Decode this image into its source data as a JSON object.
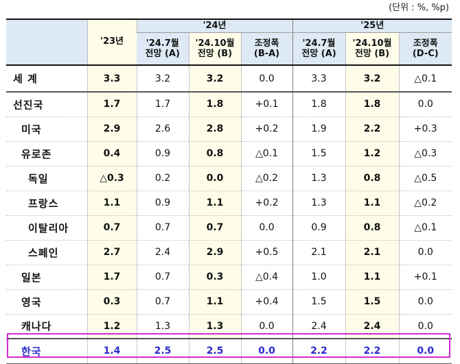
{
  "unit_note": "(단위 : %, %p)",
  "header": {
    "y23": "'23년",
    "y24": "'24년",
    "y25": "'25년",
    "sub": [
      {
        "l1": "'24.7월",
        "l2": "전망 (A)"
      },
      {
        "l1": "'24.10월",
        "l2": "전망 (B)"
      },
      {
        "l1": "조정폭",
        "l2": "(B-A)"
      },
      {
        "l1": "'24.7월",
        "l2": "전망 (A)"
      },
      {
        "l1": "'24.10월",
        "l2": "전망 (B)"
      },
      {
        "l1": "조정폭",
        "l2": "(D-C)"
      }
    ]
  },
  "rows": [
    {
      "name": "세  계",
      "v": [
        "3.3",
        "3.2",
        "3.2",
        "0.0",
        "3.3",
        "3.2",
        "△0.1"
      ]
    },
    {
      "name": "선진국",
      "v": [
        "1.7",
        "1.7",
        "1.8",
        "+0.1",
        "1.8",
        "1.8",
        "0.0"
      ]
    },
    {
      "name": "미국",
      "v": [
        "2.9",
        "2.6",
        "2.8",
        "+0.2",
        "1.9",
        "2.2",
        "+0.3"
      ]
    },
    {
      "name": "유로존",
      "v": [
        "0.4",
        "0.9",
        "0.8",
        "△0.1",
        "1.5",
        "1.2",
        "△0.3"
      ]
    },
    {
      "name": "독일",
      "v": [
        "△0.3",
        "0.2",
        "0.0",
        "△0.2",
        "1.3",
        "0.8",
        "△0.5"
      ]
    },
    {
      "name": "프랑스",
      "v": [
        "1.1",
        "0.9",
        "1.1",
        "+0.2",
        "1.3",
        "1.1",
        "△0.2"
      ]
    },
    {
      "name": "이탈리아",
      "v": [
        "0.7",
        "0.7",
        "0.7",
        "0.0",
        "0.9",
        "0.8",
        "△0.1"
      ]
    },
    {
      "name": "스페인",
      "v": [
        "2.7",
        "2.4",
        "2.9",
        "+0.5",
        "2.1",
        "2.1",
        "0.0"
      ]
    },
    {
      "name": "일본",
      "v": [
        "1.7",
        "0.7",
        "0.3",
        "△0.4",
        "1.0",
        "1.1",
        "+0.1"
      ]
    },
    {
      "name": "영국",
      "v": [
        "0.3",
        "0.7",
        "1.1",
        "+0.4",
        "1.5",
        "1.5",
        "0.0"
      ]
    },
    {
      "name": "캐나다",
      "v": [
        "1.2",
        "1.3",
        "1.3",
        "0.0",
        "2.4",
        "2.4",
        "0.0"
      ]
    },
    {
      "name": "한국",
      "v": [
        "1.4",
        "2.5",
        "2.5",
        "0.0",
        "2.2",
        "2.2",
        "0.0"
      ]
    }
  ]
}
